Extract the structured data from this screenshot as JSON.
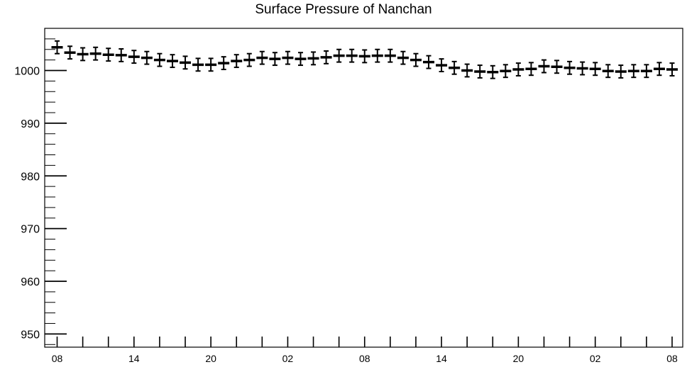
{
  "chart_data": {
    "type": "scatter",
    "title": "Surface Pressure of Nanchan",
    "xlabel": "",
    "ylabel": "",
    "ylim": [
      947.5,
      1008
    ],
    "y_ticks": [
      950,
      960,
      970,
      980,
      990,
      1000
    ],
    "x_tick_labels": [
      "08",
      "14",
      "20",
      "02",
      "08",
      "14",
      "20",
      "02",
      "08"
    ],
    "x_step_hours": 1,
    "error": 1.2,
    "grid": false,
    "legend": "none",
    "series": [
      {
        "values": [
          1004.4,
          1003.4,
          1003.1,
          1003.2,
          1003.0,
          1002.9,
          1002.6,
          1002.4,
          1002.0,
          1001.8,
          1001.5,
          1001.1,
          1001.1,
          1001.4,
          1001.8,
          1002.0,
          1002.4,
          1002.2,
          1002.4,
          1002.2,
          1002.3,
          1002.5,
          1002.8,
          1002.8,
          1002.7,
          1002.8,
          1002.8,
          1002.4,
          1002.0,
          1001.6,
          1001.0,
          1000.5,
          1000.0,
          999.8,
          999.7,
          999.9,
          1000.2,
          1000.3,
          1000.8,
          1000.7,
          1000.5,
          1000.4,
          1000.3,
          999.9,
          999.8,
          999.9,
          999.9,
          1000.3,
          1000.2
        ]
      }
    ]
  }
}
